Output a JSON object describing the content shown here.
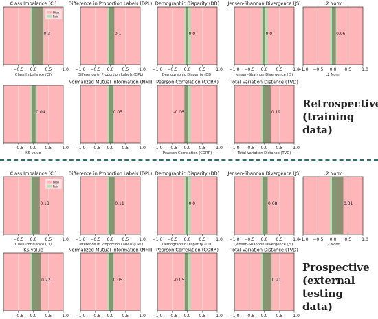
{
  "legend": {
    "bias_label": "Bias",
    "fair_label": "Fair"
  },
  "colors": {
    "bias": "#ffb6b9",
    "fair": "#b8dfb4",
    "bar": "#7b8a66",
    "axes": "#333333",
    "divider": "#2e6b73"
  },
  "sections": {
    "retrospective": {
      "label": "Retrospective\n(training data)"
    },
    "prospective": {
      "label": "Prospective\n(external testing\ndata)"
    }
  },
  "chart_data": [
    {
      "type": "bar",
      "orientation": "vertical-band",
      "section": "retrospective",
      "title": "Class Imbalance (CI)",
      "xlabel": "Class Imbalance (CI)",
      "value": 0.3,
      "value_label": "0.3",
      "xlim": [
        -1.0,
        1.0
      ],
      "xticks": [
        "−0.5",
        "0.0",
        "0.5",
        "1.0"
      ],
      "fair_range": [
        -0.1,
        0.1
      ],
      "legend": true
    },
    {
      "type": "bar",
      "orientation": "vertical-band",
      "section": "retrospective",
      "title": "Difference in Proportion Labels (DPL)",
      "xlabel": "Difference in Proportion Labels (DPL)",
      "value": 0.1,
      "value_label": "0.1",
      "xlim": [
        -1.0,
        1.0
      ],
      "xticks": [
        "−1.0",
        "−0.5",
        "0.0",
        "0.5",
        "1.0"
      ],
      "fair_range": [
        -0.1,
        0.1
      ]
    },
    {
      "type": "bar",
      "orientation": "vertical-band",
      "section": "retrospective",
      "title": "Demographic Disparity (DD)",
      "xlabel": "Demographic Disparity (DD)",
      "value": 0.0,
      "value_label": "0.0",
      "xlim": [
        -1.0,
        1.0
      ],
      "xticks": [
        "−1.0",
        "−0.5",
        "0.0",
        "0.5",
        "1.0"
      ],
      "fair_range": [
        -0.1,
        0.1
      ]
    },
    {
      "type": "bar",
      "orientation": "vertical-band",
      "section": "retrospective",
      "title": "Jensen-Shannon Divergence (JS)",
      "xlabel": "Jensen-Shannon Divergence (JS)",
      "value": 0.0,
      "value_label": "0.0",
      "xlim": [
        -1.0,
        1.0
      ],
      "xticks": [
        "−1.0",
        "−0.5",
        "0.0",
        "0.5",
        "1.0"
      ],
      "fair_range": [
        -0.1,
        0.1
      ]
    },
    {
      "type": "bar",
      "orientation": "vertical-band",
      "section": "retrospective",
      "title": "L2 Norm",
      "xlabel": "L2 Norm",
      "value": 0.06,
      "value_label": "0.06",
      "xlim": [
        -1.0,
        1.0
      ],
      "xticks": [
        "−1.0",
        "−0.5",
        "0.0",
        "0.5",
        "1.0"
      ],
      "fair_range": [
        -0.1,
        0.1
      ]
    },
    {
      "type": "bar",
      "orientation": "vertical-band",
      "section": "retrospective",
      "title": "",
      "xlabel": "KS value",
      "value": 0.04,
      "value_label": "0.04",
      "xlim": [
        -1.0,
        1.0
      ],
      "xticks": [
        "−0.5",
        "0.0",
        "0.5",
        "1.0"
      ],
      "fair_range": [
        -0.1,
        0.1
      ]
    },
    {
      "type": "bar",
      "orientation": "vertical-band",
      "section": "retrospective",
      "title": "Normalized Mutual Information (NMI)",
      "xlabel": "",
      "value": 0.05,
      "value_label": "0.05",
      "xlim": [
        -1.0,
        1.0
      ],
      "xticks": [
        "−1.0",
        "−0.5",
        "0.0",
        "0.5",
        "1.0"
      ],
      "fair_range": [
        -0.1,
        0.1
      ]
    },
    {
      "type": "bar",
      "orientation": "vertical-band",
      "section": "retrospective",
      "title": "Pearson Correlation (CORR)",
      "xlabel": "Pearson Correlation (CORR)",
      "value": -0.06,
      "value_label": "-0.06",
      "xlim": [
        -1.0,
        1.0
      ],
      "xticks": [
        "−1.0",
        "−0.5",
        "0.0",
        "0.5",
        "1.0"
      ],
      "fair_range": [
        -0.1,
        0.1
      ]
    },
    {
      "type": "bar",
      "orientation": "vertical-band",
      "section": "retrospective",
      "title": "Total Variation Distance (TVD)",
      "xlabel": "Total Variation Distance (TVD)",
      "value": 0.19,
      "value_label": "0.19",
      "xlim": [
        -1.0,
        1.0
      ],
      "xticks": [
        "−1.0",
        "−0.5",
        "0.0",
        "0.5",
        "1.0"
      ],
      "fair_range": [
        -0.1,
        0.1
      ]
    },
    {
      "type": "bar",
      "orientation": "vertical-band",
      "section": "prospective",
      "title": "Class Imbalance (CI)",
      "xlabel": "Class Imbalance (CI)",
      "value": 0.18,
      "value_label": "0.18",
      "xlim": [
        -1.0,
        1.0
      ],
      "xticks": [
        "−0.5",
        "0.0",
        "0.5",
        "1.0"
      ],
      "fair_range": [
        -0.1,
        0.1
      ],
      "legend": true
    },
    {
      "type": "bar",
      "orientation": "vertical-band",
      "section": "prospective",
      "title": "Difference in Proportion Labels (DPL)",
      "xlabel": "Difference in Proportion Labels (DPL)",
      "value": 0.11,
      "value_label": "0.11",
      "xlim": [
        -1.0,
        1.0
      ],
      "xticks": [
        "−1.0",
        "−0.5",
        "0.0",
        "0.5",
        "1.0"
      ],
      "fair_range": [
        -0.1,
        0.1
      ]
    },
    {
      "type": "bar",
      "orientation": "vertical-band",
      "section": "prospective",
      "title": "Demographic Disparity (DD)",
      "xlabel": "Demographic Disparity (DD)",
      "value": 0.0,
      "value_label": "0.0",
      "xlim": [
        -1.0,
        1.0
      ],
      "xticks": [
        "−1.0",
        "−0.5",
        "0.0",
        "0.5",
        "1.0"
      ],
      "fair_range": [
        -0.1,
        0.1
      ]
    },
    {
      "type": "bar",
      "orientation": "vertical-band",
      "section": "prospective",
      "title": "Jensen-Shannon Divergence (JS)",
      "xlabel": "Jensen-Shannon Divergence (JS)",
      "value": 0.08,
      "value_label": "0.08",
      "xlim": [
        -1.0,
        1.0
      ],
      "xticks": [
        "−1.0",
        "−0.5",
        "0.0",
        "0.5",
        "1.0"
      ],
      "fair_range": [
        -0.1,
        0.1
      ]
    },
    {
      "type": "bar",
      "orientation": "vertical-band",
      "section": "prospective",
      "title": "L2 Norm",
      "xlabel": "L2 Norm",
      "value": 0.31,
      "value_label": "0.31",
      "xlim": [
        -1.0,
        1.0
      ],
      "xticks": [
        "−1.0",
        "−0.5",
        "0.0",
        "0.5",
        "1.0"
      ],
      "fair_range": [
        -0.1,
        0.1
      ]
    },
    {
      "type": "bar",
      "orientation": "vertical-band",
      "section": "prospective",
      "title": "KS value",
      "xlabel": "KS value",
      "value": 0.22,
      "value_label": "0.22",
      "xlim": [
        -1.0,
        1.0
      ],
      "xticks": [
        "−0.5",
        "0.0",
        "0.5",
        "1.0"
      ],
      "fair_range": [
        -0.1,
        0.1
      ]
    },
    {
      "type": "bar",
      "orientation": "vertical-band",
      "section": "prospective",
      "title": "Normalized Mutual Information (NMI)",
      "xlabel": "Normalized Mutual Information (NMI)",
      "value": 0.05,
      "value_label": "0.05",
      "xlim": [
        -1.0,
        1.0
      ],
      "xticks": [
        "−1.0",
        "−0.5",
        "0.0",
        "0.5",
        "1.0"
      ],
      "fair_range": [
        -0.1,
        0.1
      ]
    },
    {
      "type": "bar",
      "orientation": "vertical-band",
      "section": "prospective",
      "title": "Pearson Correlation (CORR)",
      "xlabel": "Pearson Correlation (CORR)",
      "value": -0.05,
      "value_label": "-0.05",
      "xlim": [
        -1.0,
        1.0
      ],
      "xticks": [
        "−1.0",
        "−0.5",
        "0.0",
        "0.5",
        "1.0"
      ],
      "fair_range": [
        -0.1,
        0.1
      ]
    },
    {
      "type": "bar",
      "orientation": "vertical-band",
      "section": "prospective",
      "title": "Total Variation Distance (TVD)",
      "xlabel": "Total Variation Distance (TVD)",
      "value": 0.21,
      "value_label": "0.21",
      "xlim": [
        -1.0,
        1.0
      ],
      "xticks": [
        "−1.0",
        "−0.5",
        "0.0",
        "0.5",
        "1.0"
      ],
      "fair_range": [
        -0.1,
        0.1
      ]
    }
  ]
}
